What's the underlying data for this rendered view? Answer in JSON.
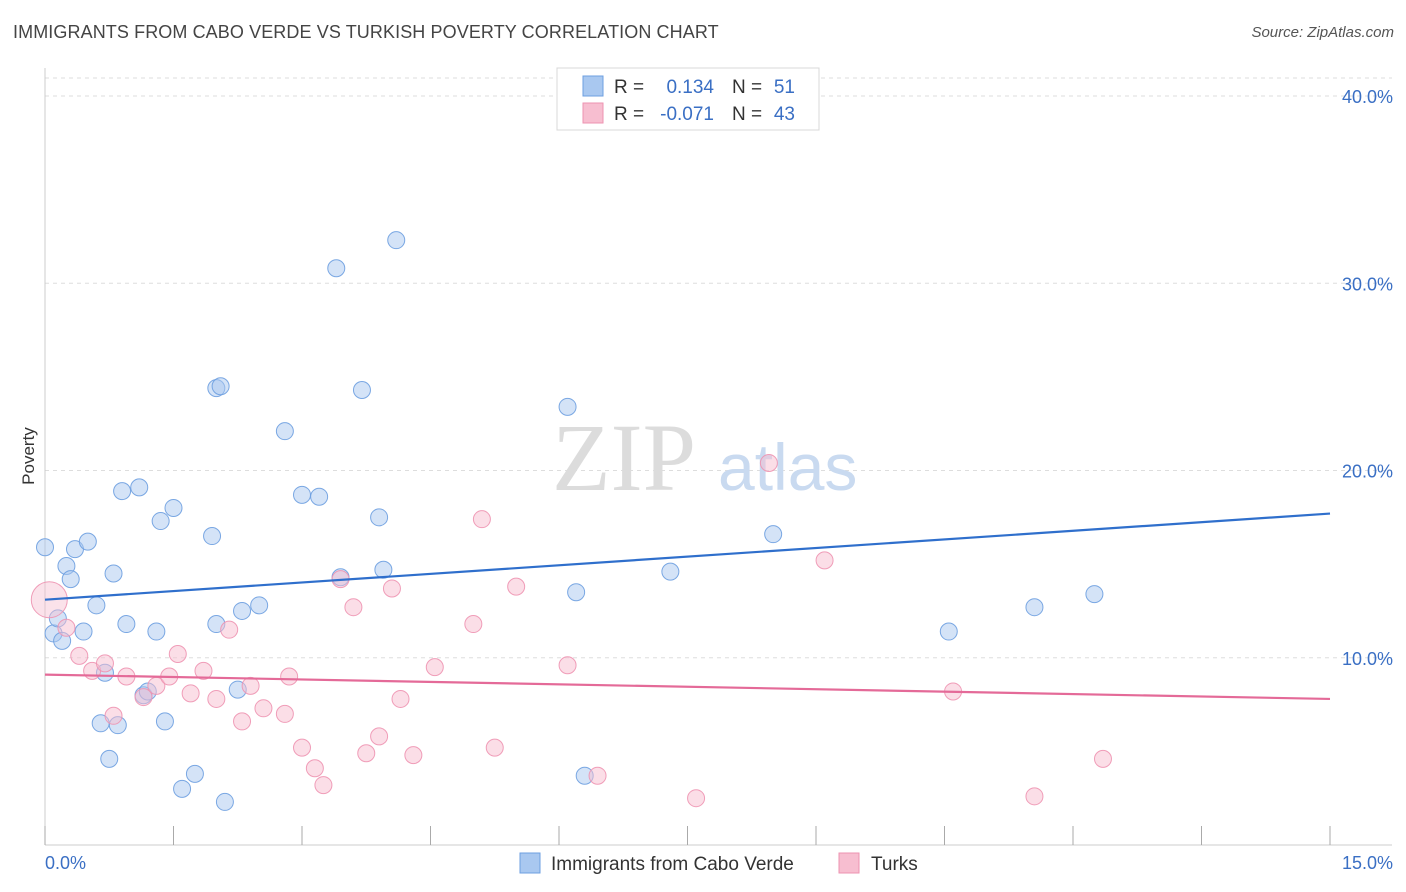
{
  "header": {
    "title": "IMMIGRANTS FROM CABO VERDE VS TURKISH POVERTY CORRELATION CHART",
    "source": "Source: ZipAtlas.com"
  },
  "watermark": {
    "zip": "ZIP",
    "atlas": "atlas"
  },
  "legend": {
    "r_label": "R =",
    "n_label": "N =",
    "rows": [
      {
        "r": "0.134",
        "n": "51",
        "color": "#a9c8f0",
        "stroke": "#6d9fe0"
      },
      {
        "r": "-0.071",
        "n": "43",
        "color": "#f7bed0",
        "stroke": "#ee93b1"
      }
    ]
  },
  "chart_data": {
    "type": "scatter",
    "title": "IMMIGRANTS FROM CABO VERDE VS TURKISH POVERTY CORRELATION CHART",
    "xlabel": "",
    "ylabel": "Poverty",
    "xlim": [
      0,
      15
    ],
    "ylim": [
      0,
      40
    ],
    "x_tick_labels": [
      "0.0%",
      "15.0%"
    ],
    "y_ticks": [
      10,
      20,
      30,
      40
    ],
    "y_tick_labels": [
      "10.0%",
      "20.0%",
      "30.0%",
      "40.0%"
    ],
    "grid": true,
    "legend_position": "bottom",
    "series": [
      {
        "name": "Immigrants from Cabo Verde",
        "color": "#6d9fe0",
        "fill": "#a9c8f0",
        "trend": {
          "x": [
            0,
            15
          ],
          "y": [
            13.1,
            17.7
          ]
        },
        "points": [
          [
            0.0,
            15.9
          ],
          [
            0.1,
            11.3
          ],
          [
            0.15,
            12.1
          ],
          [
            0.2,
            10.9
          ],
          [
            0.25,
            14.9
          ],
          [
            0.3,
            14.2
          ],
          [
            0.35,
            15.8
          ],
          [
            0.45,
            11.4
          ],
          [
            0.5,
            16.2
          ],
          [
            0.6,
            12.8
          ],
          [
            0.65,
            6.5
          ],
          [
            0.7,
            9.2
          ],
          [
            0.75,
            4.6
          ],
          [
            0.8,
            14.5
          ],
          [
            0.85,
            6.4
          ],
          [
            0.9,
            18.9
          ],
          [
            0.95,
            11.8
          ],
          [
            1.1,
            19.1
          ],
          [
            1.15,
            8.0
          ],
          [
            1.2,
            8.2
          ],
          [
            1.3,
            11.4
          ],
          [
            1.35,
            17.3
          ],
          [
            1.4,
            6.6
          ],
          [
            1.5,
            18.0
          ],
          [
            1.6,
            3.0
          ],
          [
            1.75,
            3.8
          ],
          [
            1.95,
            16.5
          ],
          [
            2.0,
            11.8
          ],
          [
            2.0,
            24.4
          ],
          [
            2.05,
            24.5
          ],
          [
            2.1,
            2.3
          ],
          [
            2.25,
            8.3
          ],
          [
            2.3,
            12.5
          ],
          [
            2.5,
            12.8
          ],
          [
            2.8,
            22.1
          ],
          [
            3.0,
            18.7
          ],
          [
            3.2,
            18.6
          ],
          [
            3.4,
            30.8
          ],
          [
            3.45,
            14.3
          ],
          [
            3.7,
            24.3
          ],
          [
            3.9,
            17.5
          ],
          [
            3.95,
            14.7
          ],
          [
            4.1,
            32.3
          ],
          [
            6.1,
            23.4
          ],
          [
            6.2,
            13.5
          ],
          [
            6.3,
            3.7
          ],
          [
            7.3,
            14.6
          ],
          [
            8.5,
            16.6
          ],
          [
            10.55,
            11.4
          ],
          [
            11.55,
            12.7
          ],
          [
            12.25,
            13.4
          ]
        ]
      },
      {
        "name": "Turks",
        "color": "#ee93b1",
        "fill": "#f7bed0",
        "trend": {
          "x": [
            0,
            15
          ],
          "y": [
            9.1,
            7.8
          ]
        },
        "points": [
          [
            0.05,
            13.1
          ],
          [
            0.25,
            11.6
          ],
          [
            0.4,
            10.1
          ],
          [
            0.55,
            9.3
          ],
          [
            0.7,
            9.7
          ],
          [
            0.8,
            6.9
          ],
          [
            0.95,
            9.0
          ],
          [
            1.15,
            7.9
          ],
          [
            1.3,
            8.5
          ],
          [
            1.45,
            9.0
          ],
          [
            1.55,
            10.2
          ],
          [
            1.7,
            8.1
          ],
          [
            1.85,
            9.3
          ],
          [
            2.0,
            7.8
          ],
          [
            2.15,
            11.5
          ],
          [
            2.3,
            6.6
          ],
          [
            2.4,
            8.5
          ],
          [
            2.55,
            7.3
          ],
          [
            2.8,
            7.0
          ],
          [
            2.85,
            9.0
          ],
          [
            3.0,
            5.2
          ],
          [
            3.15,
            4.1
          ],
          [
            3.25,
            3.2
          ],
          [
            3.45,
            14.2
          ],
          [
            3.6,
            12.7
          ],
          [
            3.75,
            4.9
          ],
          [
            3.9,
            5.8
          ],
          [
            4.05,
            13.7
          ],
          [
            4.15,
            7.8
          ],
          [
            4.3,
            4.8
          ],
          [
            4.55,
            9.5
          ],
          [
            5.0,
            11.8
          ],
          [
            5.1,
            17.4
          ],
          [
            5.25,
            5.2
          ],
          [
            5.5,
            13.8
          ],
          [
            6.1,
            9.6
          ],
          [
            6.45,
            3.7
          ],
          [
            7.6,
            2.5
          ],
          [
            8.45,
            20.4
          ],
          [
            9.1,
            15.2
          ],
          [
            10.6,
            8.2
          ],
          [
            11.55,
            2.6
          ],
          [
            12.35,
            4.6
          ]
        ]
      }
    ]
  }
}
